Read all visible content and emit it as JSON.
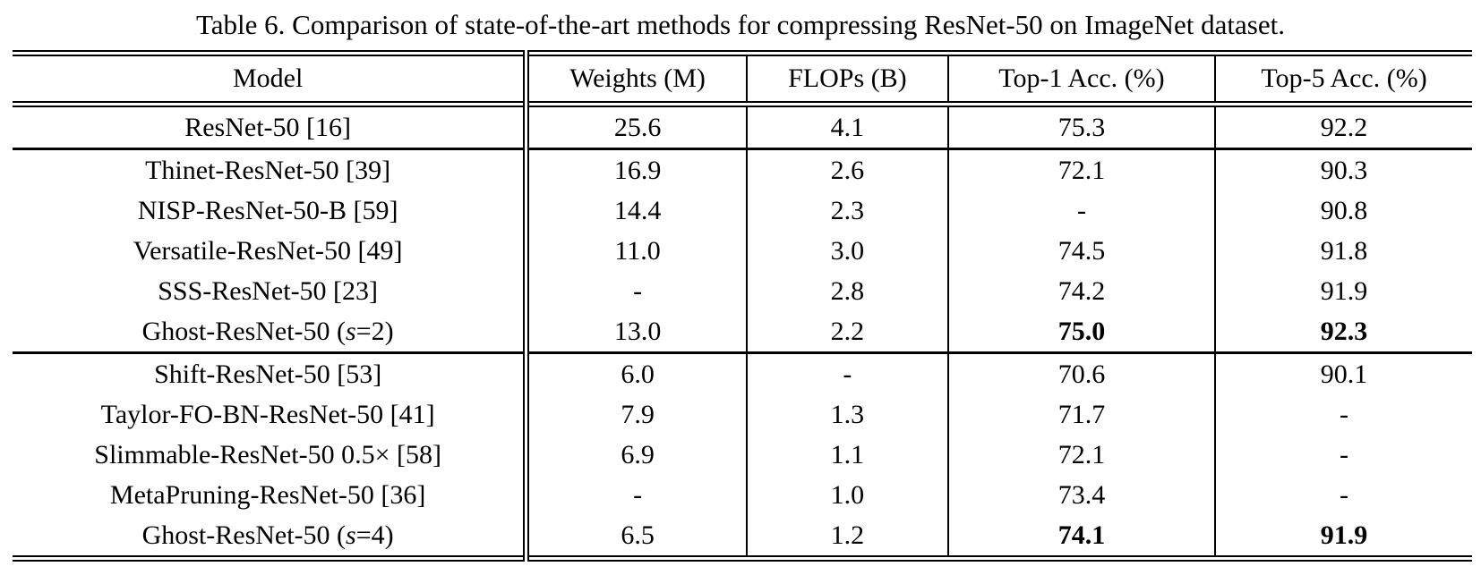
{
  "caption": "Table 6. Comparison of state-of-the-art methods for compressing ResNet-50 on ImageNet dataset.",
  "table": {
    "columns": [
      "Model",
      "Weights (M)",
      "FLOPs (B)",
      "Top-1 Acc. (%)",
      "Top-5 Acc. (%)"
    ],
    "rows": [
      {
        "model": "ResNet-50 [16]",
        "weights": "25.6",
        "flops": "4.1",
        "top1": "75.3",
        "top5": "92.2"
      },
      {
        "model": "Thinet-ResNet-50 [39]",
        "weights": "16.9",
        "flops": "2.6",
        "top1": "72.1",
        "top5": "90.3"
      },
      {
        "model": "NISP-ResNet-50-B [59]",
        "weights": "14.4",
        "flops": "2.3",
        "top1": "-",
        "top5": "90.8"
      },
      {
        "model": "Versatile-ResNet-50 [49]",
        "weights": "11.0",
        "flops": "3.0",
        "top1": "74.5",
        "top5": "91.8"
      },
      {
        "model": "SSS-ResNet-50 [23]",
        "weights": "-",
        "flops": "2.8",
        "top1": "74.2",
        "top5": "91.9"
      },
      {
        "model_pre": "Ghost-ResNet-50 (",
        "model_var": "s",
        "model_post": "=2)",
        "weights": "13.0",
        "flops": "2.2",
        "top1": "75.0",
        "top5": "92.3"
      },
      {
        "model": "Shift-ResNet-50 [53]",
        "weights": "6.0",
        "flops": "-",
        "top1": "70.6",
        "top5": "90.1"
      },
      {
        "model": "Taylor-FO-BN-ResNet-50 [41]",
        "weights": "7.9",
        "flops": "1.3",
        "top1": "71.7",
        "top5": "-"
      },
      {
        "model": "Slimmable-ResNet-50 0.5× [58]",
        "weights": "6.9",
        "flops": "1.1",
        "top1": "72.1",
        "top5": "-"
      },
      {
        "model": "MetaPruning-ResNet-50 [36]",
        "weights": "-",
        "flops": "1.0",
        "top1": "73.4",
        "top5": "-"
      },
      {
        "model_pre": "Ghost-ResNet-50 (",
        "model_var": "s",
        "model_post": "=4)",
        "weights": "6.5",
        "flops": "1.2",
        "top1": "74.1",
        "top5": "91.9"
      }
    ]
  },
  "colors": {
    "text": "#000000",
    "background": "#ffffff",
    "rule": "#000000"
  }
}
